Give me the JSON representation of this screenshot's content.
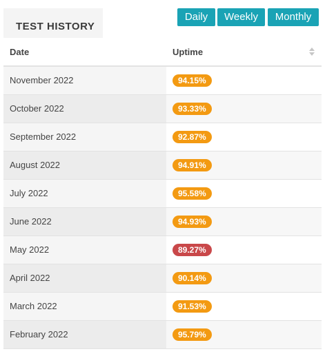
{
  "header": {
    "title": "TEST HISTORY",
    "buttons": {
      "daily": "Daily",
      "weekly": "Weekly",
      "monthly": "Monthly"
    }
  },
  "table": {
    "columns": {
      "date": "Date",
      "uptime": "Uptime"
    },
    "rows": [
      {
        "date": "November 2022",
        "uptime": "94.15%",
        "status": "ok"
      },
      {
        "date": "October 2022",
        "uptime": "93.33%",
        "status": "ok"
      },
      {
        "date": "September 2022",
        "uptime": "92.87%",
        "status": "ok"
      },
      {
        "date": "August 2022",
        "uptime": "94.91%",
        "status": "ok"
      },
      {
        "date": "July 2022",
        "uptime": "95.58%",
        "status": "ok"
      },
      {
        "date": "June 2022",
        "uptime": "94.93%",
        "status": "ok"
      },
      {
        "date": "May 2022",
        "uptime": "89.27%",
        "status": "bad"
      },
      {
        "date": "April 2022",
        "uptime": "90.14%",
        "status": "ok"
      },
      {
        "date": "March 2022",
        "uptime": "91.53%",
        "status": "ok"
      },
      {
        "date": "February 2022",
        "uptime": "95.79%",
        "status": "ok"
      }
    ]
  },
  "colors": {
    "accent": "#1aa3b5",
    "badge_ok": "#f39a12",
    "badge_bad": "#c9484a"
  },
  "icons": {
    "sort": "sort-icon"
  }
}
